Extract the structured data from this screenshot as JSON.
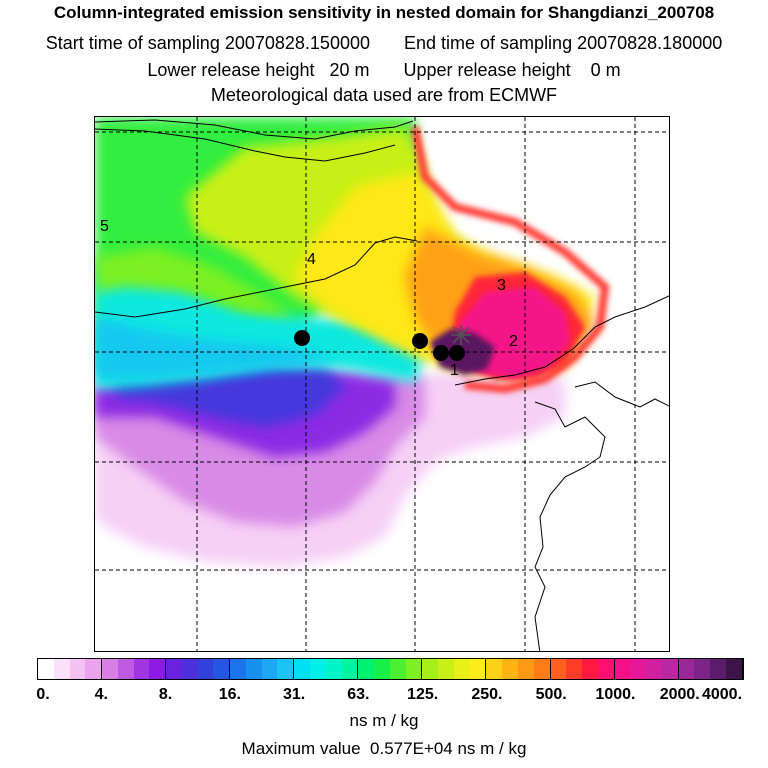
{
  "header": {
    "title": "Column-integrated emission sensitivity in nested domain for Shangdianzi_200708",
    "start_label": "Start time of sampling 20070828.150000",
    "end_label": "End time of sampling 20070828.180000",
    "lower_label": "Lower release height   20 m",
    "upper_label": "Upper release height    0 m",
    "met_label": "Meteorological data used are from ECMWF"
  },
  "map": {
    "time_markers": [
      "1",
      "2",
      "3",
      "4",
      "5"
    ],
    "max_intensity_colour": "#5a1860"
  },
  "colorbar": {
    "ticks": [
      "0.",
      "4.",
      "8.",
      "16.",
      "31.",
      "63.",
      "125.",
      "250.",
      "500.",
      "1000.",
      "2000.",
      "4000."
    ],
    "colors": [
      "#ffffff",
      "#fbe0fb",
      "#f3c2f3",
      "#eaa3ec",
      "#d97ee5",
      "#c05ae0",
      "#a236e4",
      "#8f1ae6",
      "#6a22e0",
      "#4c30dc",
      "#3340dc",
      "#2458e4",
      "#1c74ec",
      "#1890f0",
      "#1ca8f2",
      "#1cc4f4",
      "#00e0f4",
      "#00f0e8",
      "#00f4c8",
      "#00f4a0",
      "#00f070",
      "#18f048",
      "#4cf030",
      "#7cf020",
      "#a4f018",
      "#c8f018",
      "#e8f018",
      "#ffec18",
      "#ffd018",
      "#ffb414",
      "#ff9814",
      "#ff7c18",
      "#ff6020",
      "#ff3c28",
      "#ff1840",
      "#ff1070",
      "#f41088",
      "#e41898",
      "#d020a0",
      "#b828a0",
      "#9a2898",
      "#7c2488",
      "#5c1c6c",
      "#3c1448"
    ],
    "units": "ns m / kg"
  },
  "footer": {
    "max_value": "Maximum value  0.577E+04 ns m / kg"
  }
}
